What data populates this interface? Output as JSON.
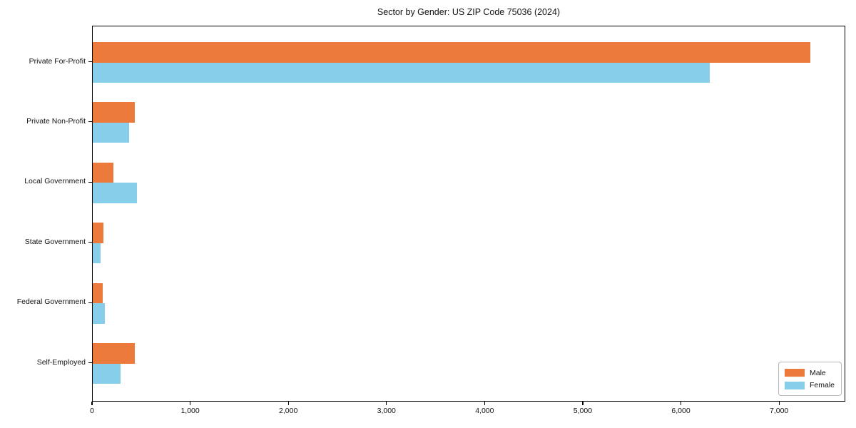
{
  "figure": {
    "title": "Sector by Gender: US ZIP Code 75036 (2024)"
  },
  "chart_data": {
    "type": "bar",
    "orientation": "horizontal",
    "title": "Sector by Gender: US ZIP Code 75036 (2024)",
    "categories": [
      "Private For-Profit",
      "Private Non-Profit",
      "Local Government",
      "State Government",
      "Federal Government",
      "Self-Employed"
    ],
    "series": [
      {
        "name": "Male",
        "color": "#eb7a3c",
        "values": [
          7310,
          430,
          210,
          110,
          100,
          430
        ]
      },
      {
        "name": "Female",
        "color": "#87ceeb",
        "values": [
          6290,
          370,
          450,
          80,
          120,
          280
        ]
      }
    ],
    "xlabel": "",
    "ylabel": "",
    "xlim": [
      0,
      7675
    ],
    "xticks": [
      {
        "value": 0,
        "label": "0"
      },
      {
        "value": 1000,
        "label": "1,000"
      },
      {
        "value": 2000,
        "label": "2,000"
      },
      {
        "value": 3000,
        "label": "3,000"
      },
      {
        "value": 4000,
        "label": "4,000"
      },
      {
        "value": 5000,
        "label": "5,000"
      },
      {
        "value": 6000,
        "label": "6,000"
      },
      {
        "value": 7000,
        "label": "7,000"
      }
    ],
    "grid": false,
    "legend_position": "lower right"
  }
}
